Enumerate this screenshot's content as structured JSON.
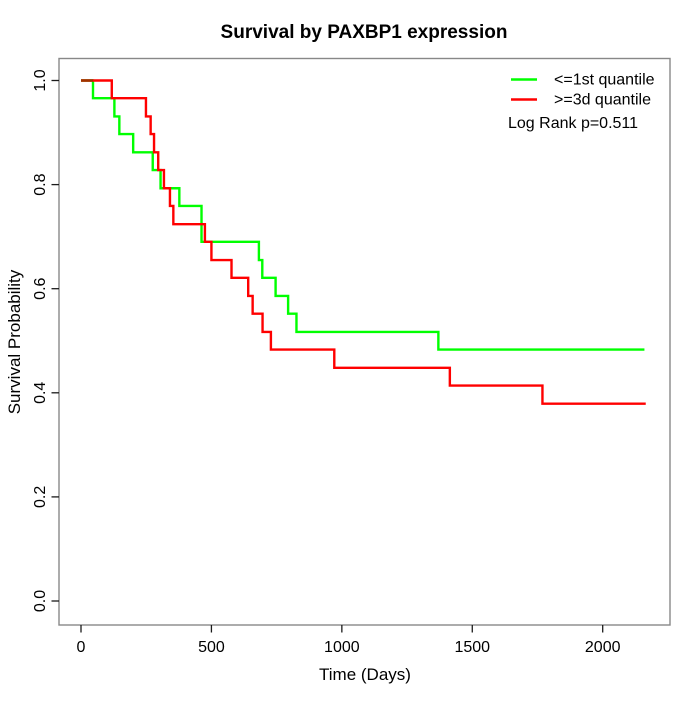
{
  "figure": {
    "title": "Survival by PAXBP1 expression",
    "x_axis_label": "Time (Days)",
    "y_axis_label": "Survival Probability",
    "annotation": "Log Rank p=0.511"
  },
  "legend": {
    "position": "top-right",
    "items": [
      {
        "label": "<=1st quantile",
        "color": "#00FF00"
      },
      {
        "label": ">=3d quantile",
        "color": "#FF0000"
      }
    ]
  },
  "colors": {
    "curve_low": "#00FF00",
    "curve_high": "#FF0000",
    "curve_overlap": "#A03000",
    "plot_border": "#888888",
    "tick": "#1A1A1A",
    "text": "#000000",
    "background": "#FFFFFF"
  },
  "chart_data": {
    "type": "line",
    "subtype": "kaplan-meier-step",
    "title": "Survival by PAXBP1 expression",
    "xlabel": "Time (Days)",
    "ylabel": "Survival Probability",
    "xlim": [
      0,
      2200
    ],
    "ylim": [
      0.0,
      1.0
    ],
    "xticks": [
      0,
      500,
      1000,
      1500,
      2000
    ],
    "yticks": [
      0.0,
      0.2,
      0.4,
      0.6,
      0.8,
      1.0
    ],
    "grid": false,
    "legend_position": "top-right",
    "annotation": "Log Rank p=0.511",
    "series": [
      {
        "name": "<=1st quantile",
        "color": "#00FF00",
        "end_time": 2160,
        "points": [
          [
            0,
            1.0
          ],
          [
            46,
            0.966
          ],
          [
            128,
            0.931
          ],
          [
            147,
            0.897
          ],
          [
            200,
            0.862
          ],
          [
            275,
            0.828
          ],
          [
            305,
            0.793
          ],
          [
            377,
            0.759
          ],
          [
            462,
            0.69
          ],
          [
            682,
            0.655
          ],
          [
            695,
            0.621
          ],
          [
            746,
            0.586
          ],
          [
            794,
            0.552
          ],
          [
            826,
            0.517
          ],
          [
            1370,
            0.483
          ]
        ]
      },
      {
        "name": ">=3d quantile",
        "color": "#FF0000",
        "end_time": 2165,
        "points": [
          [
            0,
            1.0
          ],
          [
            118,
            0.966
          ],
          [
            249,
            0.931
          ],
          [
            267,
            0.897
          ],
          [
            280,
            0.862
          ],
          [
            296,
            0.828
          ],
          [
            318,
            0.793
          ],
          [
            341,
            0.759
          ],
          [
            354,
            0.724
          ],
          [
            475,
            0.69
          ],
          [
            500,
            0.655
          ],
          [
            577,
            0.621
          ],
          [
            641,
            0.586
          ],
          [
            658,
            0.552
          ],
          [
            696,
            0.517
          ],
          [
            728,
            0.483
          ],
          [
            971,
            0.448
          ],
          [
            1414,
            0.414
          ],
          [
            1769,
            0.379
          ]
        ]
      }
    ]
  }
}
